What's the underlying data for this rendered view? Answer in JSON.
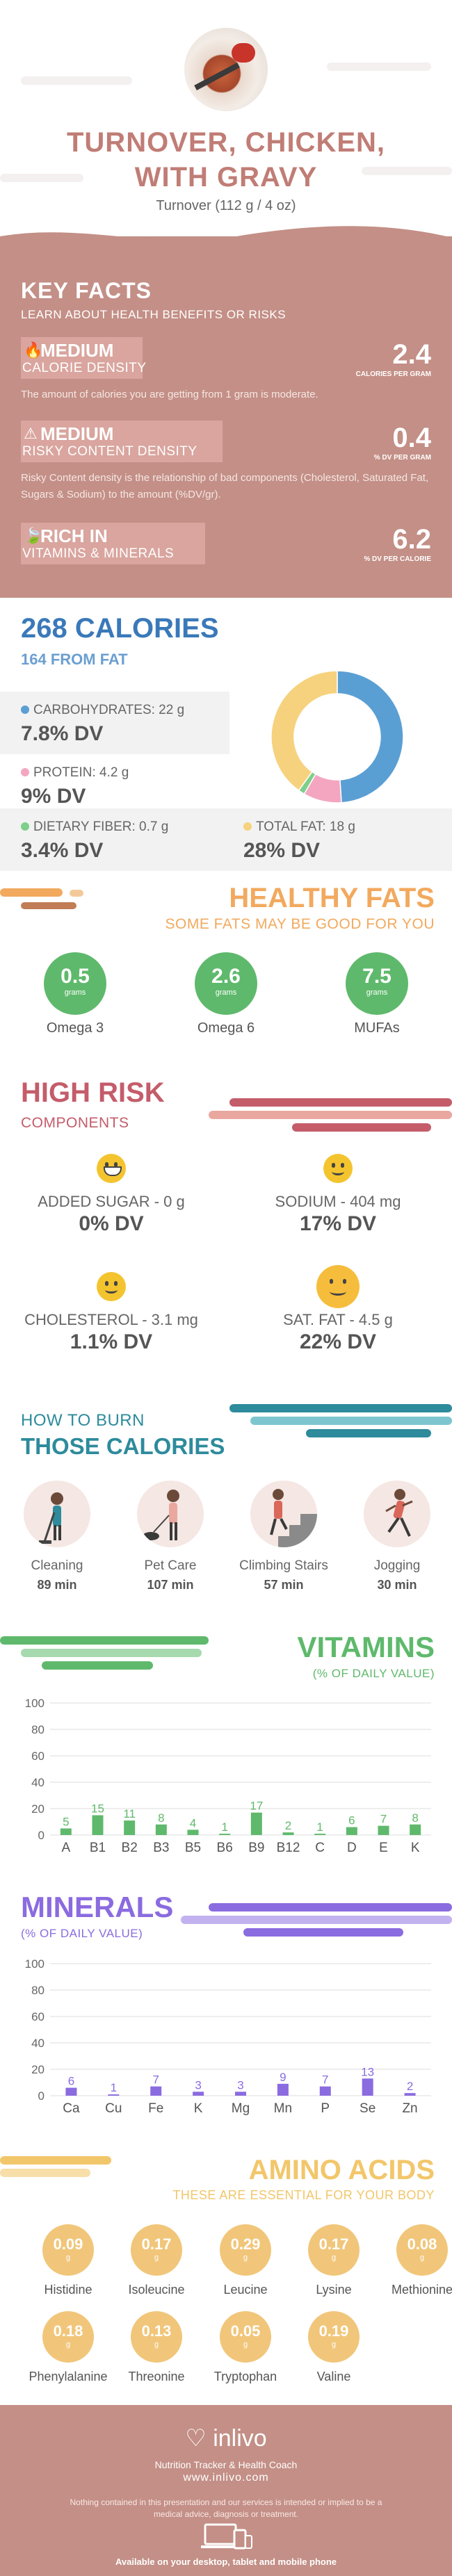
{
  "header": {
    "title_line1": "TURNOVER, CHICKEN,",
    "title_line2": "WITH GRAVY",
    "serving": "Turnover (112 g / 4 oz)"
  },
  "key_facts": {
    "title": "KEY FACTS",
    "subtitle": "LEARN ABOUT HEALTH BENEFITS OR RISKS",
    "calorie_density": {
      "level": "MEDIUM",
      "label": "CALORIE DENSITY",
      "value": "2.4",
      "unit": "CALORIES PER GRAM",
      "description": "The amount of calories you are getting from 1 gram is moderate."
    },
    "risky_content": {
      "level": "MEDIUM",
      "label": "RISKY CONTENT DENSITY",
      "value": "0.4",
      "unit": "% DV PER GRAM",
      "description": "Risky Content density is the relationship of bad components (Cholesterol, Saturated Fat, Sugars & Sodium) to the amount (%DV/gr)."
    },
    "vitamins_minerals": {
      "level": "RICH  IN",
      "label": "VITAMINS & MINERALS",
      "value": "6.2",
      "unit": "% DV PER CALORIE"
    }
  },
  "calories": {
    "title": "268 CALORIES",
    "from_fat": "164 FROM FAT",
    "carbs_label": "CARBOHYDRATES: 22 g",
    "carbs_dv": "7.8% DV",
    "protein_label": "PROTEIN: 4.2 g",
    "protein_dv": "9% DV",
    "fiber_label": "DIETARY FIBER: 0.7 g",
    "fiber_dv": "3.4% DV",
    "fat_label": "TOTAL FAT: 18 g",
    "fat_dv": "28% DV",
    "colors": {
      "carbs": "#5a9fd4",
      "protein": "#f4a6c1",
      "fiber": "#7dcf8a",
      "fat": "#f6d27e"
    },
    "donut_grams": {
      "carbs": 22,
      "protein": 4.2,
      "fiber": 0.7,
      "fat": 18
    }
  },
  "healthy_fats": {
    "title": "HEALTHY FATS",
    "subtitle": "SOME FATS MAY BE GOOD FOR YOU",
    "unit": "grams",
    "items": [
      {
        "value": "0.5",
        "name": "Omega 3"
      },
      {
        "value": "2.6",
        "name": "Omega 6"
      },
      {
        "value": "7.5",
        "name": "MUFAs"
      }
    ]
  },
  "high_risk": {
    "title": "HIGH RISK",
    "subtitle": "COMPONENTS",
    "items": [
      {
        "label": "ADDED SUGAR - 0 g",
        "dv": "0% DV"
      },
      {
        "label": "SODIUM - 404 mg",
        "dv": "17% DV"
      },
      {
        "label": "CHOLESTEROL - 3.1 mg",
        "dv": "1.1% DV"
      },
      {
        "label": "SAT. FAT - 4.5 g",
        "dv": "22% DV"
      }
    ]
  },
  "burn": {
    "title_line1": "HOW TO BURN",
    "title_line2": "THOSE CALORIES",
    "items": [
      {
        "name": "Cleaning",
        "minutes": "89 min"
      },
      {
        "name": "Pet Care",
        "minutes": "107 min"
      },
      {
        "name": "Climbing Stairs",
        "minutes": "57 min"
      },
      {
        "name": "Jogging",
        "minutes": "30 min"
      }
    ]
  },
  "vitamins": {
    "title": "VITAMINS",
    "subtitle": "(% OF DAILY VALUE)",
    "color": "#5fb96c",
    "chart_data": {
      "type": "bar",
      "categories": [
        "A",
        "B1",
        "B2",
        "B3",
        "B5",
        "B6",
        "B9",
        "B12",
        "C",
        "D",
        "E",
        "K"
      ],
      "values": [
        5,
        15,
        11,
        8,
        4,
        1,
        17,
        2,
        1,
        6,
        7,
        8
      ],
      "ylim": [
        0,
        100
      ],
      "yticks": [
        0,
        20,
        40,
        60,
        80,
        100
      ]
    }
  },
  "minerals": {
    "title": "MINERALS",
    "subtitle": "(% OF DAILY VALUE)",
    "color": "#8b6be0",
    "chart_data": {
      "type": "bar",
      "categories": [
        "Ca",
        "Cu",
        "Fe",
        "K",
        "Mg",
        "Mn",
        "P",
        "Se",
        "Zn"
      ],
      "values": [
        6,
        1,
        7,
        3,
        3,
        9,
        7,
        13,
        2
      ],
      "ylim": [
        0,
        100
      ],
      "yticks": [
        0,
        20,
        40,
        60,
        80,
        100
      ]
    }
  },
  "amino": {
    "title": "AMINO ACIDS",
    "subtitle": "THESE ARE ESSENTIAL FOR YOUR BODY",
    "unit": "g",
    "items": [
      {
        "value": "0.09",
        "name": "Histidine"
      },
      {
        "value": "0.17",
        "name": "Isoleucine"
      },
      {
        "value": "0.29",
        "name": "Leucine"
      },
      {
        "value": "0.17",
        "name": "Lysine"
      },
      {
        "value": "0.08",
        "name": "Methionine"
      },
      {
        "value": "0.18",
        "name": "Phenylalanine"
      },
      {
        "value": "0.13",
        "name": "Threonine"
      },
      {
        "value": "0.05",
        "name": "Tryptophan"
      },
      {
        "value": "0.19",
        "name": "Valine"
      }
    ]
  },
  "footer": {
    "logo": "inlivo",
    "tagline": "Nutrition Tracker & Health Coach",
    "url": "www.inlivo.com",
    "disclaimer": "Nothing contained in this presentation and our services is intended or implied to be a medical advice, diagnosis or treatment.",
    "available": "Available on your desktop, tablet and mobile phone"
  }
}
